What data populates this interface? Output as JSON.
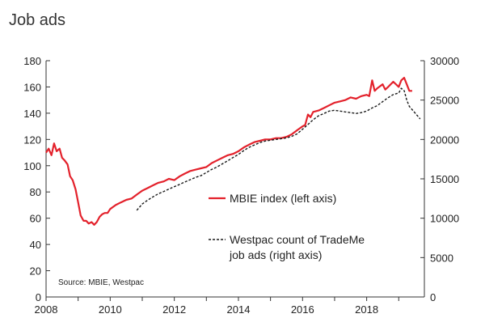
{
  "page_title": "Job ads",
  "chart_data": {
    "type": "line",
    "title": "Job ads",
    "source": "Source: MBIE, Westpac",
    "x_ticks": [
      "2008",
      "2010",
      "2012",
      "2014",
      "2016",
      "2018"
    ],
    "x_range": [
      2008,
      2019.8
    ],
    "y_left_range": [
      0,
      180
    ],
    "y_left_ticks": [
      "0",
      "20",
      "40",
      "60",
      "80",
      "100",
      "120",
      "140",
      "160",
      "180"
    ],
    "y_right_range": [
      0,
      30000
    ],
    "y_right_ticks": [
      "0",
      "5000",
      "10000",
      "15000",
      "20000",
      "25000",
      "30000"
    ],
    "legend": {
      "mbie": "MBIE index (left axis)",
      "westpac_line1": "Westpac count of TradeMe",
      "westpac_line2": "job ads (right axis)"
    },
    "series": [
      {
        "name": "MBIE index (left axis)",
        "axis": "left",
        "color": "#e3212b",
        "style": "solid",
        "points": [
          [
            2008.0,
            110
          ],
          [
            2008.08,
            113
          ],
          [
            2008.17,
            108
          ],
          [
            2008.25,
            117
          ],
          [
            2008.33,
            111
          ],
          [
            2008.42,
            113
          ],
          [
            2008.5,
            106
          ],
          [
            2008.58,
            104
          ],
          [
            2008.67,
            101
          ],
          [
            2008.75,
            92
          ],
          [
            2008.83,
            89
          ],
          [
            2008.92,
            82
          ],
          [
            2009.0,
            72
          ],
          [
            2009.08,
            62
          ],
          [
            2009.17,
            58
          ],
          [
            2009.25,
            58
          ],
          [
            2009.33,
            56
          ],
          [
            2009.42,
            57
          ],
          [
            2009.5,
            55
          ],
          [
            2009.58,
            57
          ],
          [
            2009.67,
            61
          ],
          [
            2009.75,
            63
          ],
          [
            2009.83,
            64
          ],
          [
            2009.92,
            64
          ],
          [
            2010.0,
            67
          ],
          [
            2010.17,
            70
          ],
          [
            2010.33,
            72
          ],
          [
            2010.5,
            74
          ],
          [
            2010.67,
            75
          ],
          [
            2010.83,
            78
          ],
          [
            2011.0,
            81
          ],
          [
            2011.17,
            83
          ],
          [
            2011.33,
            85
          ],
          [
            2011.5,
            87
          ],
          [
            2011.67,
            88
          ],
          [
            2011.83,
            90
          ],
          [
            2012.0,
            89
          ],
          [
            2012.17,
            92
          ],
          [
            2012.33,
            94
          ],
          [
            2012.5,
            96
          ],
          [
            2012.67,
            97
          ],
          [
            2012.83,
            98
          ],
          [
            2013.0,
            99
          ],
          [
            2013.17,
            102
          ],
          [
            2013.33,
            104
          ],
          [
            2013.5,
            106
          ],
          [
            2013.67,
            108
          ],
          [
            2013.83,
            109
          ],
          [
            2014.0,
            111
          ],
          [
            2014.17,
            114
          ],
          [
            2014.33,
            116
          ],
          [
            2014.5,
            118
          ],
          [
            2014.67,
            119
          ],
          [
            2014.83,
            120
          ],
          [
            2015.0,
            120
          ],
          [
            2015.17,
            121
          ],
          [
            2015.33,
            121
          ],
          [
            2015.5,
            122
          ],
          [
            2015.67,
            124
          ],
          [
            2015.83,
            127
          ],
          [
            2016.0,
            130
          ],
          [
            2016.08,
            131
          ],
          [
            2016.17,
            139
          ],
          [
            2016.25,
            137
          ],
          [
            2016.33,
            141
          ],
          [
            2016.5,
            142
          ],
          [
            2016.67,
            144
          ],
          [
            2016.83,
            146
          ],
          [
            2017.0,
            148
          ],
          [
            2017.17,
            149
          ],
          [
            2017.33,
            150
          ],
          [
            2017.5,
            152
          ],
          [
            2017.67,
            151
          ],
          [
            2017.83,
            153
          ],
          [
            2018.0,
            154
          ],
          [
            2018.08,
            153
          ],
          [
            2018.17,
            165
          ],
          [
            2018.25,
            157
          ],
          [
            2018.33,
            159
          ],
          [
            2018.5,
            162
          ],
          [
            2018.58,
            158
          ],
          [
            2018.67,
            160
          ],
          [
            2018.83,
            164
          ],
          [
            2019.0,
            160
          ],
          [
            2019.08,
            165
          ],
          [
            2019.17,
            167
          ],
          [
            2019.25,
            162
          ],
          [
            2019.33,
            157
          ],
          [
            2019.42,
            157
          ]
        ]
      },
      {
        "name": "Westpac count of TradeMe job ads (right axis)",
        "axis": "right",
        "color": "#1a1a1a",
        "style": "dashed",
        "points": [
          [
            2010.83,
            11000
          ],
          [
            2011.0,
            11800
          ],
          [
            2011.17,
            12300
          ],
          [
            2011.33,
            12700
          ],
          [
            2011.5,
            13100
          ],
          [
            2011.67,
            13400
          ],
          [
            2011.83,
            13700
          ],
          [
            2012.0,
            14000
          ],
          [
            2012.17,
            14300
          ],
          [
            2012.33,
            14600
          ],
          [
            2012.5,
            14900
          ],
          [
            2012.67,
            15200
          ],
          [
            2012.83,
            15400
          ],
          [
            2013.0,
            15800
          ],
          [
            2013.17,
            16200
          ],
          [
            2013.33,
            16500
          ],
          [
            2013.5,
            16900
          ],
          [
            2013.67,
            17300
          ],
          [
            2013.83,
            17700
          ],
          [
            2014.0,
            18100
          ],
          [
            2014.17,
            18600
          ],
          [
            2014.33,
            19000
          ],
          [
            2014.5,
            19300
          ],
          [
            2014.67,
            19600
          ],
          [
            2014.83,
            19800
          ],
          [
            2015.0,
            19900
          ],
          [
            2015.17,
            20000
          ],
          [
            2015.33,
            20100
          ],
          [
            2015.5,
            20200
          ],
          [
            2015.67,
            20400
          ],
          [
            2015.83,
            20700
          ],
          [
            2016.0,
            21300
          ],
          [
            2016.17,
            21900
          ],
          [
            2016.33,
            22500
          ],
          [
            2016.5,
            23000
          ],
          [
            2016.67,
            23300
          ],
          [
            2016.83,
            23600
          ],
          [
            2017.0,
            23700
          ],
          [
            2017.17,
            23600
          ],
          [
            2017.33,
            23500
          ],
          [
            2017.5,
            23400
          ],
          [
            2017.67,
            23300
          ],
          [
            2017.83,
            23400
          ],
          [
            2018.0,
            23600
          ],
          [
            2018.17,
            24000
          ],
          [
            2018.33,
            24300
          ],
          [
            2018.5,
            24800
          ],
          [
            2018.67,
            25300
          ],
          [
            2018.83,
            25700
          ],
          [
            2019.0,
            25900
          ],
          [
            2019.08,
            26500
          ],
          [
            2019.17,
            26200
          ],
          [
            2019.25,
            25000
          ],
          [
            2019.33,
            24200
          ],
          [
            2019.5,
            23400
          ],
          [
            2019.67,
            22600
          ]
        ]
      }
    ]
  }
}
